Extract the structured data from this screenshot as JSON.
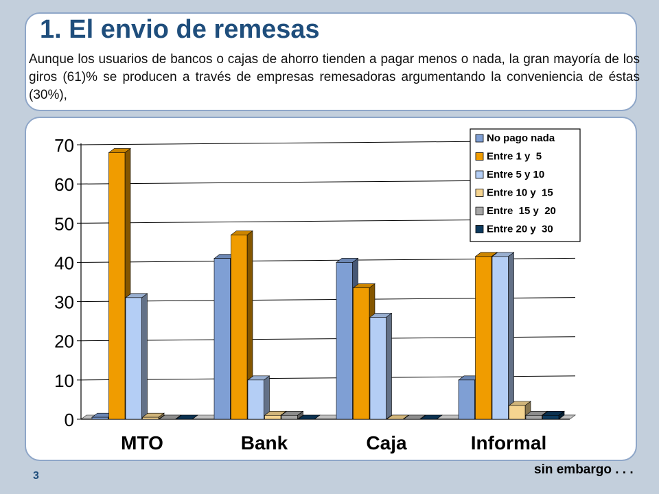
{
  "slide": {
    "title": "1. El envio de remesas",
    "intro": "Aunque los usuarios de bancos o cajas de ahorro tienden a pagar menos o nada, la gran mayoría de los giros (61)% se producen a través de empresas remesadoras argumentando la conveniencia de éstas (30%),",
    "page_number": "3",
    "footer_note": "sin embargo . . ."
  },
  "colors": {
    "panel_border": "#8ea6c8",
    "background": "#c3cfdc",
    "title": "#1f4e7c"
  },
  "chart_data": {
    "type": "bar",
    "style": "3d-clustered",
    "title": "",
    "xlabel": "",
    "ylabel": "",
    "categories": [
      "MTO",
      "Bank",
      "Caja",
      "Informal"
    ],
    "ylim": [
      0,
      70
    ],
    "yticks": [
      "0",
      "10",
      "20",
      "30",
      "40",
      "50",
      "60",
      "70"
    ],
    "grid": true,
    "legend_position": "top-right",
    "series": [
      {
        "name": "No pago nada",
        "color": "#7f9fd4",
        "values": [
          0.5,
          41,
          40,
          10
        ]
      },
      {
        "name": "Entre 1 y  5",
        "color": "#f09c00",
        "values": [
          68,
          47,
          33.5,
          41.5
        ]
      },
      {
        "name": "Entre 5 y 10",
        "color": "#b4cef5",
        "values": [
          31,
          10,
          26,
          41.5
        ]
      },
      {
        "name": "Entre 10 y  15",
        "color": "#f5d490",
        "values": [
          0.5,
          1,
          0,
          3.5
        ]
      },
      {
        "name": "Entre  15 y  20",
        "color": "#a6a6a6",
        "values": [
          0,
          1,
          0,
          1
        ]
      },
      {
        "name": "Entre 20 y  30",
        "color": "#0d3a5e",
        "values": [
          0,
          0,
          0,
          1
        ]
      }
    ]
  }
}
